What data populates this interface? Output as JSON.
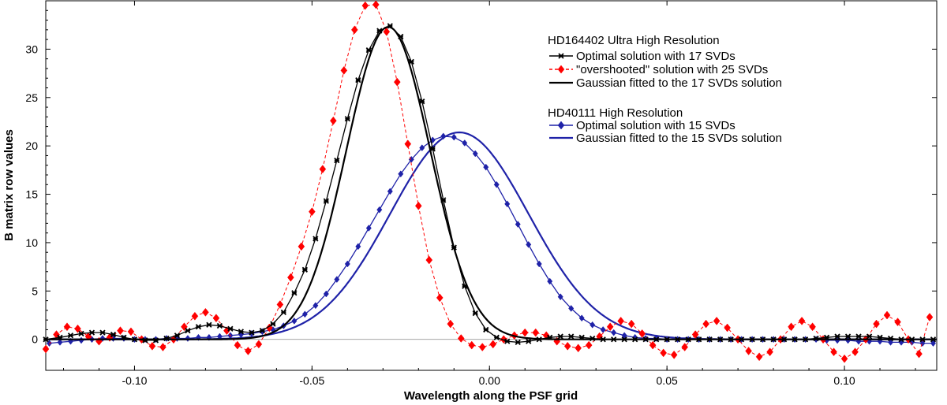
{
  "chart_data": {
    "type": "line",
    "title": "",
    "xlabel": "Wavelength along the PSF grid",
    "ylabel": "B matrix row values",
    "xlim": [
      -0.125,
      0.126
    ],
    "ylim": [
      -3.2,
      35
    ],
    "x_ticks": [
      -0.1,
      -0.05,
      0.0,
      0.05,
      0.1
    ],
    "x_tick_labels": [
      "-0.10",
      "-0.05",
      "0.00",
      "0.05",
      "0.10"
    ],
    "y_ticks": [
      0,
      5,
      10,
      15,
      20,
      25,
      30
    ],
    "y_tick_labels": [
      "0",
      "5",
      "10",
      "15",
      "20",
      "25",
      "30"
    ],
    "legend_groups": [
      {
        "heading": "HD164402 Ultra High Resolution",
        "entries": [
          "Optimal solution with 17 SVDs",
          "\"overshooted\" solution with 25 SVDs",
          "Gaussian fitted to the 17 SVDs solution"
        ]
      },
      {
        "heading": "HD40111 High Resolution",
        "entries": [
          "Optimal solution with 15 SVDs",
          "Gaussian fitted to the 15 SVDs solution"
        ]
      }
    ],
    "series": [
      {
        "name": "Optimal solution with 17 SVDs",
        "color": "#000000",
        "marker": "x-star",
        "line": "solid",
        "x": [
          -0.125,
          -0.121,
          -0.118,
          -0.115,
          -0.112,
          -0.109,
          -0.106,
          -0.103,
          -0.1,
          -0.097,
          -0.094,
          -0.091,
          -0.088,
          -0.085,
          -0.082,
          -0.079,
          -0.076,
          -0.073,
          -0.07,
          -0.067,
          -0.064,
          -0.061,
          -0.058,
          -0.055,
          -0.052,
          -0.049,
          -0.046,
          -0.043,
          -0.04,
          -0.037,
          -0.034,
          -0.031,
          -0.028,
          -0.025,
          -0.022,
          -0.019,
          -0.016,
          -0.013,
          -0.01,
          -0.007,
          -0.004,
          -0.001,
          0.002,
          0.005,
          0.008,
          0.011,
          0.014,
          0.017,
          0.02,
          0.023,
          0.026,
          0.029,
          0.032,
          0.035,
          0.038,
          0.041,
          0.044,
          0.047,
          0.05,
          0.053,
          0.056,
          0.059,
          0.062,
          0.065,
          0.068,
          0.071,
          0.074,
          0.077,
          0.08,
          0.083,
          0.086,
          0.089,
          0.092,
          0.095,
          0.098,
          0.101,
          0.104,
          0.107,
          0.11,
          0.113,
          0.116,
          0.119,
          0.122,
          0.125
        ],
        "y": [
          0.0,
          0.2,
          0.4,
          0.6,
          0.7,
          0.7,
          0.5,
          0.2,
          0.0,
          -0.1,
          -0.1,
          0.1,
          0.4,
          0.9,
          1.3,
          1.5,
          1.4,
          1.1,
          0.8,
          0.7,
          0.9,
          1.6,
          2.8,
          4.8,
          7.2,
          10.4,
          14.3,
          18.5,
          22.8,
          26.8,
          29.9,
          31.9,
          32.4,
          31.3,
          28.7,
          24.6,
          19.7,
          14.4,
          9.5,
          5.5,
          2.7,
          1.0,
          0.2,
          -0.2,
          -0.3,
          -0.2,
          0.0,
          0.2,
          0.3,
          0.3,
          0.2,
          0.1,
          0.0,
          0.0,
          0.0,
          0.0,
          0.0,
          0.0,
          0.0,
          0.0,
          0.0,
          0.0,
          0.0,
          0.0,
          0.0,
          0.0,
          0.0,
          0.0,
          0.0,
          0.0,
          0.0,
          0.0,
          0.1,
          0.2,
          0.3,
          0.3,
          0.3,
          0.3,
          0.2,
          0.1,
          0.0,
          0.0,
          0.0,
          0.0
        ]
      },
      {
        "name": "\"overshooted\" solution with 25 SVDs",
        "color": "#ff0000",
        "marker": "diamond",
        "line": "dashed",
        "x": [
          -0.125,
          -0.122,
          -0.119,
          -0.116,
          -0.113,
          -0.11,
          -0.107,
          -0.104,
          -0.101,
          -0.098,
          -0.095,
          -0.092,
          -0.089,
          -0.086,
          -0.083,
          -0.08,
          -0.077,
          -0.074,
          -0.071,
          -0.068,
          -0.065,
          -0.062,
          -0.059,
          -0.056,
          -0.053,
          -0.05,
          -0.047,
          -0.044,
          -0.041,
          -0.038,
          -0.035,
          -0.032,
          -0.029,
          -0.026,
          -0.023,
          -0.02,
          -0.017,
          -0.014,
          -0.011,
          -0.008,
          -0.005,
          -0.002,
          0.001,
          0.004,
          0.007,
          0.01,
          0.013,
          0.016,
          0.019,
          0.022,
          0.025,
          0.028,
          0.031,
          0.034,
          0.037,
          0.04,
          0.043,
          0.046,
          0.049,
          0.052,
          0.055,
          0.058,
          0.061,
          0.064,
          0.067,
          0.07,
          0.073,
          0.076,
          0.079,
          0.082,
          0.085,
          0.088,
          0.091,
          0.094,
          0.097,
          0.1,
          0.103,
          0.106,
          0.109,
          0.112,
          0.115,
          0.118,
          0.121,
          0.124
        ],
        "y": [
          -1.0,
          0.5,
          1.3,
          1.1,
          0.3,
          -0.2,
          0.2,
          0.9,
          0.8,
          0.0,
          -0.7,
          -0.8,
          0.0,
          1.3,
          2.4,
          2.8,
          2.2,
          0.9,
          -0.6,
          -1.2,
          -0.5,
          1.2,
          3.6,
          6.4,
          9.6,
          13.2,
          17.6,
          22.6,
          27.8,
          32.0,
          34.5,
          34.6,
          31.8,
          26.6,
          20.2,
          13.8,
          8.2,
          4.3,
          1.6,
          0.1,
          -0.6,
          -0.8,
          -0.5,
          0.0,
          0.4,
          0.7,
          0.7,
          0.4,
          -0.2,
          -0.7,
          -0.9,
          -0.6,
          0.3,
          1.3,
          1.9,
          1.6,
          0.6,
          -0.6,
          -1.4,
          -1.6,
          -0.8,
          0.5,
          1.6,
          1.9,
          1.2,
          0.0,
          -1.2,
          -1.8,
          -1.3,
          0.0,
          1.3,
          1.9,
          1.3,
          0.0,
          -1.3,
          -2.0,
          -1.3,
          0.0,
          1.6,
          2.5,
          1.8,
          0.0,
          -1.5,
          2.3
        ]
      },
      {
        "name": "Gaussian fitted to the 17 SVDs solution",
        "color": "#000000",
        "marker": "none",
        "line": "solid",
        "gaussian": {
          "amplitude": 32.3,
          "center": -0.0285,
          "sigma": 0.0118,
          "baseline": 0.0
        }
      },
      {
        "name": "Optimal solution with 15 SVDs",
        "color": "#1f22a8",
        "marker": "diamond",
        "line": "solid",
        "x": [
          -0.124,
          -0.121,
          -0.118,
          -0.115,
          -0.112,
          -0.109,
          -0.106,
          -0.103,
          -0.1,
          -0.097,
          -0.094,
          -0.091,
          -0.088,
          -0.085,
          -0.082,
          -0.079,
          -0.076,
          -0.073,
          -0.07,
          -0.067,
          -0.064,
          -0.061,
          -0.058,
          -0.055,
          -0.052,
          -0.049,
          -0.046,
          -0.043,
          -0.04,
          -0.037,
          -0.034,
          -0.031,
          -0.028,
          -0.025,
          -0.022,
          -0.019,
          -0.016,
          -0.013,
          -0.01,
          -0.007,
          -0.004,
          -0.001,
          0.002,
          0.005,
          0.008,
          0.011,
          0.014,
          0.017,
          0.02,
          0.023,
          0.026,
          0.029,
          0.032,
          0.035,
          0.038,
          0.041,
          0.044,
          0.047,
          0.05,
          0.053,
          0.056,
          0.059,
          0.062,
          0.065,
          0.068,
          0.071,
          0.074,
          0.077,
          0.08,
          0.083,
          0.086,
          0.089,
          0.092,
          0.095,
          0.098,
          0.101,
          0.104,
          0.107,
          0.11,
          0.113,
          0.116,
          0.119,
          0.122,
          0.125
        ],
        "y": [
          -0.4,
          -0.3,
          -0.2,
          -0.1,
          0.0,
          0.1,
          0.1,
          0.1,
          0.0,
          0.0,
          0.0,
          0.1,
          0.1,
          0.1,
          0.2,
          0.2,
          0.3,
          0.4,
          0.5,
          0.6,
          0.8,
          1.0,
          1.4,
          1.9,
          2.6,
          3.5,
          4.7,
          6.2,
          7.8,
          9.6,
          11.5,
          13.4,
          15.3,
          17.1,
          18.6,
          19.8,
          20.6,
          21.0,
          20.9,
          20.3,
          19.2,
          17.8,
          16.0,
          14.0,
          11.9,
          9.8,
          7.8,
          6.0,
          4.4,
          3.2,
          2.2,
          1.5,
          1.0,
          0.7,
          0.4,
          0.2,
          0.1,
          0.1,
          0.0,
          0.0,
          0.0,
          0.0,
          0.0,
          0.0,
          0.0,
          0.0,
          0.0,
          0.0,
          0.0,
          0.0,
          0.0,
          0.0,
          0.0,
          -0.1,
          -0.1,
          -0.1,
          -0.2,
          -0.2,
          -0.2,
          -0.3,
          -0.3,
          -0.3,
          -0.4,
          -0.4
        ]
      },
      {
        "name": "Gaussian fitted to the 15 SVDs solution",
        "color": "#1f22a8",
        "marker": "none",
        "line": "solid",
        "gaussian": {
          "amplitude": 21.4,
          "center": -0.0085,
          "sigma": 0.0195,
          "baseline": 0.0
        }
      }
    ]
  }
}
